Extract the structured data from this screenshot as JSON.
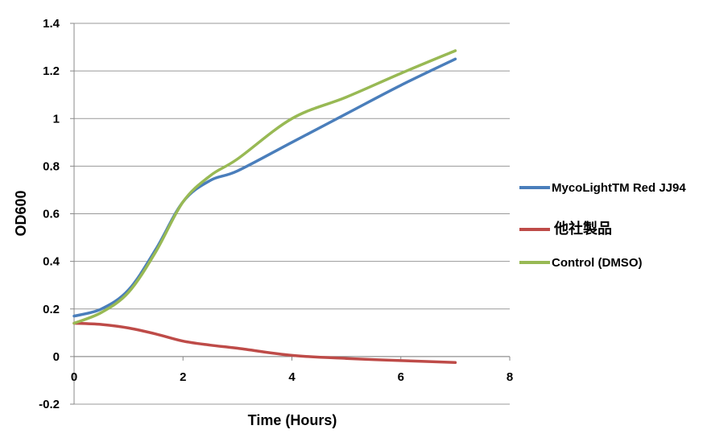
{
  "chart_data": {
    "type": "line",
    "xlabel": "Time (Hours)",
    "ylabel": "OD600",
    "xlim": [
      0,
      8
    ],
    "ylim": [
      -0.2,
      1.4
    ],
    "xticks": [
      0,
      2,
      4,
      6,
      8
    ],
    "yticks": [
      -0.2,
      0,
      0.2,
      0.4,
      0.6,
      0.8,
      1,
      1.2,
      1.4
    ],
    "xtick_labels": [
      "0",
      "2",
      "4",
      "6",
      "8"
    ],
    "ytick_labels": [
      "-0.2",
      "0",
      "0.2",
      "0.4",
      "0.6",
      "0.8",
      "1",
      "1.2",
      "1.4"
    ],
    "grid": "horizontal",
    "legend_position": "right",
    "series": [
      {
        "name": "MycoLightTM Red JJ94",
        "color": "#4a7ebb",
        "x": [
          0,
          0.5,
          1,
          1.5,
          2,
          2.5,
          3,
          4,
          5,
          6,
          7
        ],
        "y": [
          0.17,
          0.2,
          0.28,
          0.45,
          0.65,
          0.74,
          0.78,
          0.9,
          1.02,
          1.14,
          1.25
        ]
      },
      {
        "name": "他社製品",
        "color": "#be4b48",
        "x": [
          0,
          0.5,
          1,
          1.5,
          2,
          2.5,
          3,
          4,
          5,
          6,
          7
        ],
        "y": [
          0.14,
          0.135,
          0.12,
          0.095,
          0.065,
          0.048,
          0.035,
          0.005,
          -0.008,
          -0.017,
          -0.025
        ]
      },
      {
        "name": "Control (DMSO)",
        "color": "#98b954",
        "x": [
          0,
          0.5,
          1,
          1.5,
          2,
          2.5,
          3,
          4,
          5,
          6,
          7
        ],
        "y": [
          0.14,
          0.185,
          0.27,
          0.44,
          0.65,
          0.76,
          0.83,
          1.0,
          1.09,
          1.19,
          1.285
        ]
      }
    ]
  }
}
